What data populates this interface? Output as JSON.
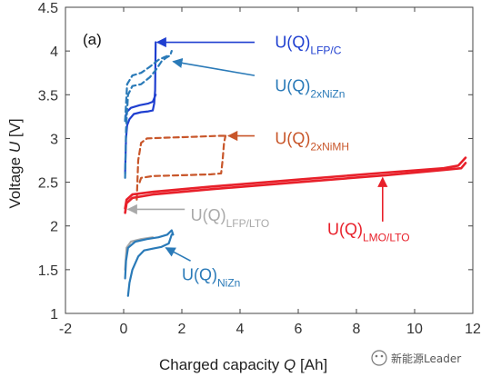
{
  "chart_data": {
    "type": "line",
    "panel_label": "(a)",
    "xlabel": "Charged capacity",
    "xlabel_var": "Q",
    "xlabel_unit": "[Ah]",
    "ylabel": "Voltage",
    "ylabel_var": "U",
    "ylabel_unit": "[V]",
    "xlim": [
      -2,
      12
    ],
    "ylim": [
      1,
      4.5
    ],
    "xticks": [
      -2,
      0,
      2,
      4,
      6,
      8,
      10,
      12
    ],
    "yticks": [
      1,
      1.5,
      2,
      2.5,
      3,
      3.5,
      4,
      4.5
    ],
    "xtick_labels": [
      "-2",
      "0",
      "2",
      "4",
      "6",
      "8",
      "10",
      "12"
    ],
    "ytick_labels": [
      "1",
      "1.5",
      "2",
      "2.5",
      "3",
      "3.5",
      "4",
      "4.5"
    ],
    "grid": false,
    "series": [
      {
        "name": "U(Q)LFP/C",
        "color": "#1f3fd0",
        "dash": "solid",
        "points": [
          [
            0.05,
            2.6
          ],
          [
            0.08,
            3.0
          ],
          [
            0.12,
            3.15
          ],
          [
            0.2,
            3.22
          ],
          [
            0.35,
            3.28
          ],
          [
            0.6,
            3.3
          ],
          [
            0.85,
            3.31
          ],
          [
            1.0,
            3.32
          ],
          [
            1.05,
            3.4
          ],
          [
            1.08,
            3.55
          ],
          [
            1.1,
            4.1
          ]
        ]
      },
      {
        "name": "U(Q)LFP/C",
        "color": "#1f3fd0",
        "dash": "solid",
        "points": [
          [
            0.05,
            3.2
          ],
          [
            0.1,
            3.3
          ],
          [
            0.25,
            3.35
          ],
          [
            0.55,
            3.38
          ],
          [
            0.85,
            3.4
          ],
          [
            1.0,
            3.42
          ],
          [
            1.1,
            3.5
          ]
        ]
      },
      {
        "name": "U(Q)2xNiZn",
        "color": "#2a7ab8",
        "dash": "dash",
        "points": [
          [
            0.05,
            2.55
          ],
          [
            0.08,
            3.1
          ],
          [
            0.15,
            3.5
          ],
          [
            0.3,
            3.6
          ],
          [
            0.6,
            3.62
          ],
          [
            0.9,
            3.7
          ],
          [
            1.1,
            3.78
          ],
          [
            1.3,
            3.88
          ],
          [
            1.45,
            3.92
          ],
          [
            1.6,
            3.95
          ],
          [
            1.65,
            4.0
          ]
        ]
      },
      {
        "name": "U(Q)2xNiZn",
        "color": "#2a7ab8",
        "dash": "dash",
        "points": [
          [
            0.05,
            3.2
          ],
          [
            0.12,
            3.62
          ],
          [
            0.3,
            3.72
          ],
          [
            0.6,
            3.75
          ],
          [
            0.9,
            3.82
          ],
          [
            1.2,
            3.9
          ],
          [
            1.4,
            3.93
          ],
          [
            1.55,
            3.95
          ]
        ]
      },
      {
        "name": "U(Q)2xNiMH",
        "color": "#c8562a",
        "dash": "dash",
        "points": [
          [
            0.45,
            2.3
          ],
          [
            0.5,
            2.75
          ],
          [
            0.6,
            2.95
          ],
          [
            0.8,
            3.0
          ],
          [
            1.5,
            3.01
          ],
          [
            2.5,
            3.02
          ],
          [
            3.3,
            3.03
          ],
          [
            3.4,
            3.03
          ],
          [
            3.5,
            3.03
          ]
        ]
      },
      {
        "name": "U(Q)2xNiMH",
        "color": "#c8562a",
        "dash": "dash",
        "points": [
          [
            0.55,
            2.5
          ],
          [
            0.6,
            2.55
          ],
          [
            1.0,
            2.57
          ],
          [
            2.0,
            2.58
          ],
          [
            3.0,
            2.59
          ],
          [
            3.35,
            2.6
          ],
          [
            3.4,
            2.75
          ],
          [
            3.45,
            2.95
          ],
          [
            3.5,
            3.03
          ]
        ]
      },
      {
        "name": "U(Q)LMO/LTO",
        "color": "#e8202a",
        "dash": "solid",
        "points": [
          [
            0.05,
            2.2
          ],
          [
            0.1,
            2.3
          ],
          [
            0.3,
            2.36
          ],
          [
            1.0,
            2.39
          ],
          [
            3.0,
            2.45
          ],
          [
            6.0,
            2.53
          ],
          [
            9.0,
            2.61
          ],
          [
            11.0,
            2.66
          ],
          [
            11.5,
            2.69
          ],
          [
            11.75,
            2.78
          ]
        ]
      },
      {
        "name": "U(Q)LMO/LTO",
        "color": "#e8202a",
        "dash": "solid",
        "points": [
          [
            0.05,
            2.15
          ],
          [
            0.1,
            2.26
          ],
          [
            0.3,
            2.32
          ],
          [
            1.0,
            2.36
          ],
          [
            3.0,
            2.42
          ],
          [
            6.0,
            2.5
          ],
          [
            9.0,
            2.58
          ],
          [
            11.0,
            2.64
          ],
          [
            11.6,
            2.66
          ],
          [
            11.75,
            2.72
          ]
        ]
      },
      {
        "name": "U(Q)LFP/LTO",
        "color": "#a9a9a9",
        "dash": "solid",
        "points": [
          [
            0.05,
            1.5
          ],
          [
            0.1,
            1.75
          ],
          [
            0.25,
            1.82
          ],
          [
            0.6,
            1.85
          ],
          [
            1.0,
            1.87
          ]
        ]
      },
      {
        "name": "U(Q)NiZn",
        "color": "#2a7ab8",
        "dash": "solid",
        "points": [
          [
            0.05,
            1.4
          ],
          [
            0.08,
            1.6
          ],
          [
            0.15,
            1.75
          ],
          [
            0.4,
            1.82
          ],
          [
            0.8,
            1.85
          ],
          [
            1.2,
            1.87
          ],
          [
            1.5,
            1.9
          ],
          [
            1.65,
            1.95
          ],
          [
            1.7,
            1.9
          ]
        ]
      },
      {
        "name": "U(Q)NiZn",
        "color": "#2a7ab8",
        "dash": "solid",
        "points": [
          [
            0.15,
            1.2
          ],
          [
            0.2,
            1.35
          ],
          [
            0.3,
            1.5
          ],
          [
            0.5,
            1.65
          ],
          [
            0.7,
            1.72
          ],
          [
            1.0,
            1.74
          ],
          [
            1.3,
            1.76
          ],
          [
            1.55,
            1.8
          ],
          [
            1.65,
            1.9
          ]
        ]
      }
    ],
    "annotations": [
      {
        "main": "U(Q)",
        "sub": "LFP/C",
        "color": "#1f3fd0",
        "text_pos": [
          5.2,
          4.1
        ],
        "arrow_from": [
          4.5,
          4.1
        ],
        "arrow_to": [
          1.15,
          4.1
        ]
      },
      {
        "main": "U(Q)",
        "sub": "2xNiZn",
        "color": "#2a7ab8",
        "text_pos": [
          5.2,
          3.6
        ],
        "arrow_from": [
          4.5,
          3.72
        ],
        "arrow_to": [
          1.7,
          3.88
        ]
      },
      {
        "main": "U(Q)",
        "sub": "2xNiMH",
        "color": "#c8562a",
        "text_pos": [
          5.2,
          3.0
        ],
        "arrow_from": [
          4.5,
          3.03
        ],
        "arrow_to": [
          3.6,
          3.03
        ]
      },
      {
        "main": "U(Q)",
        "sub": "LFP/LTO",
        "color": "#a9a9a9",
        "text_pos": [
          2.3,
          2.12
        ],
        "arrow_from": [
          2.1,
          2.19
        ],
        "arrow_to": [
          0.15,
          2.19
        ]
      },
      {
        "main": "U(Q)",
        "sub": "LMO/LTO",
        "color": "#e8202a",
        "text_pos": [
          7.0,
          1.96
        ],
        "arrow_from": [
          8.9,
          2.05
        ],
        "arrow_to": [
          8.9,
          2.55
        ]
      },
      {
        "main": "U(Q)",
        "sub": "NiZn",
        "color": "#2a7ab8",
        "text_pos": [
          2.0,
          1.44
        ],
        "arrow_from": [
          2.3,
          1.6
        ],
        "arrow_to": [
          1.45,
          1.75
        ]
      }
    ]
  },
  "watermark": {
    "text": "新能源Leader"
  }
}
